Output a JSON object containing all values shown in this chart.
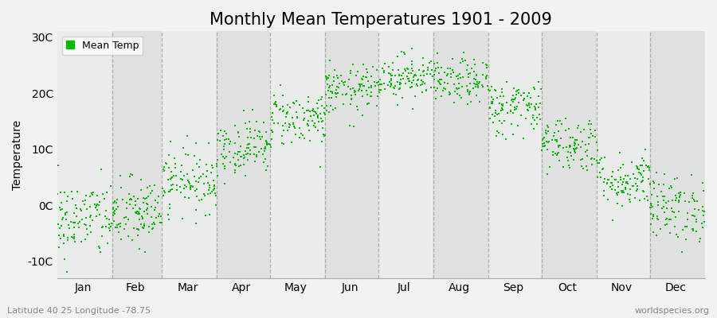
{
  "title": "Monthly Mean Temperatures 1901 - 2009",
  "ylabel": "Temperature",
  "month_labels": [
    "Jan",
    "Feb",
    "Mar",
    "Apr",
    "May",
    "Jun",
    "Jul",
    "Aug",
    "Sep",
    "Oct",
    "Nov",
    "Dec"
  ],
  "ytick_labels": [
    "-10C",
    "0C",
    "10C",
    "20C",
    "30C"
  ],
  "ytick_values": [
    -10,
    0,
    10,
    20,
    30
  ],
  "ylim": [
    -13,
    31
  ],
  "dot_color": "#00bb00",
  "dot_size": 3,
  "background_color": "#f2f2f2",
  "plot_bg_color": "#ebebeb",
  "alt_band_color": "#e0e0e0",
  "grid_color": "#888888",
  "title_fontsize": 15,
  "axis_fontsize": 10,
  "tick_fontsize": 10,
  "legend_label": "Mean Temp",
  "footer_left": "Latitude 40.25 Longitude -78.75",
  "footer_right": "worldspecies.org",
  "monthly_means": [
    -2.5,
    -1.5,
    4.5,
    10.5,
    15.5,
    20.5,
    23.0,
    22.0,
    17.5,
    11.0,
    4.5,
    -0.5
  ],
  "monthly_stds": [
    3.5,
    3.2,
    2.8,
    2.5,
    2.5,
    2.2,
    2.0,
    2.0,
    2.5,
    2.5,
    2.5,
    3.0
  ],
  "n_years": 109,
  "seed": 42,
  "days_in_month": [
    31,
    28,
    31,
    30,
    31,
    30,
    31,
    31,
    30,
    31,
    30,
    31
  ]
}
